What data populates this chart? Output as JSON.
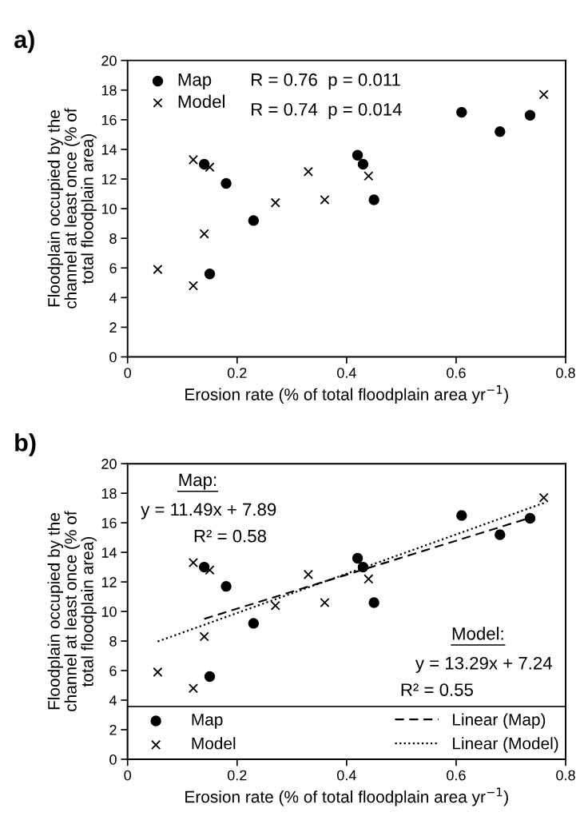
{
  "chart_data": [
    {
      "type": "scatter",
      "title": "a)",
      "xlabel": "Erosion rate (% of total floodplain area yr$^{−1}$)",
      "ylabel": "Floodplain occupied by the\nchannel at least once (% of\ntotal floodplain area)",
      "xlim": [
        0,
        0.8
      ],
      "xticks": [
        0,
        0.2,
        0.4,
        0.6,
        0.8
      ],
      "ylim": [
        0,
        20
      ],
      "yticks": [
        0,
        2,
        4,
        6,
        8,
        10,
        12,
        14,
        16,
        18,
        20
      ],
      "grid": false,
      "legend": "top left",
      "annotations": [
        "R = 0.76  p = 0.011",
        "R = 0.74  p = 0.014"
      ],
      "series": [
        {
          "name": "Map",
          "color": "#000000",
          "marker": "circle",
          "x": [
            0.14,
            0.15,
            0.18,
            0.23,
            0.42,
            0.43,
            0.45,
            0.61,
            0.68,
            0.735
          ],
          "values": [
            13.0,
            5.6,
            11.7,
            9.2,
            13.6,
            13.0,
            10.6,
            16.5,
            15.2,
            16.3
          ]
        },
        {
          "name": "Model",
          "color": "#000000",
          "marker": "cross",
          "x": [
            0.055,
            0.12,
            0.12,
            0.14,
            0.15,
            0.27,
            0.33,
            0.36,
            0.44,
            0.76
          ],
          "values": [
            5.9,
            13.3,
            4.8,
            8.3,
            12.8,
            10.4,
            12.5,
            10.6,
            12.2,
            17.7
          ]
        }
      ]
    },
    {
      "type": "scatter",
      "title": "b)",
      "xlabel": "Erosion rate (% of total floodplain area yr$^{−1}$)",
      "ylabel": "Floodplain occupied by the\nchannel at least once (% of\ntotal floodplain area)",
      "xlim": [
        0,
        0.8
      ],
      "xticks": [
        0,
        0.2,
        0.4,
        0.6,
        0.8
      ],
      "ylim": [
        0,
        20
      ],
      "yticks": [
        0,
        2,
        4,
        6,
        8,
        10,
        12,
        14,
        16,
        18,
        20
      ],
      "grid": false,
      "legend": "bottom",
      "annotations": [
        "Map:",
        "y = 11.49x + 7.89",
        "R² = 0.58",
        "Model:",
        "y = 13.29x + 7.24",
        "R² = 0.55"
      ],
      "series": [
        {
          "name": "Map",
          "color": "#000000",
          "marker": "circle",
          "x": [
            0.14,
            0.15,
            0.18,
            0.23,
            0.42,
            0.43,
            0.45,
            0.61,
            0.68,
            0.735
          ],
          "values": [
            13.0,
            5.6,
            11.7,
            9.2,
            13.6,
            13.0,
            10.6,
            16.5,
            15.2,
            16.3
          ]
        },
        {
          "name": "Model",
          "color": "#000000",
          "marker": "cross",
          "x": [
            0.055,
            0.12,
            0.12,
            0.14,
            0.15,
            0.27,
            0.33,
            0.36,
            0.44,
            0.76
          ],
          "values": [
            5.9,
            13.3,
            4.8,
            8.3,
            12.8,
            10.4,
            12.5,
            10.6,
            12.2,
            17.7
          ]
        },
        {
          "name": "Linear (Map)",
          "type": "line",
          "color": "#000000",
          "marker": "none",
          "line_style": "dashed",
          "x": [
            0.14,
            0.735
          ],
          "values": [
            9.5,
            16.34
          ]
        },
        {
          "name": "Linear (Model)",
          "type": "line",
          "color": "#000000",
          "marker": "none",
          "line_style": "dotted",
          "x": [
            0.055,
            0.76
          ],
          "values": [
            7.97,
            17.34
          ]
        }
      ]
    }
  ]
}
